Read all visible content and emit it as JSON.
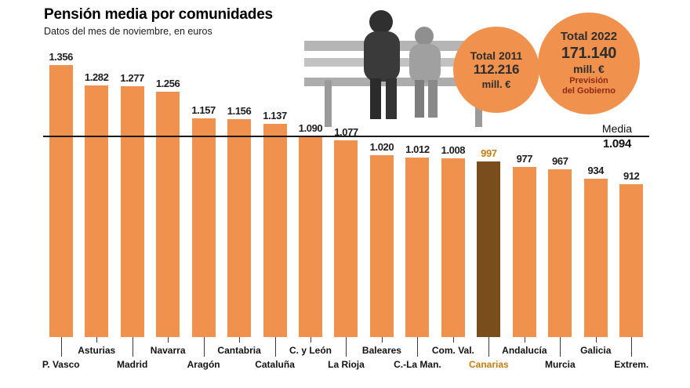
{
  "header": {
    "title": "Pensión media por comunidades",
    "subtitle": "Datos del mes de noviembre, en euros"
  },
  "badges": {
    "total_2011": {
      "label": "Total 2011",
      "value": "112.216",
      "unit": "mill. €"
    },
    "total_2022": {
      "label": "Total 2022",
      "value": "171.140",
      "unit": "mill. €",
      "note_line1": "Previsión",
      "note_line2": "del Gobierno"
    }
  },
  "average": {
    "label": "Media",
    "value": 1094,
    "value_label": "1.094"
  },
  "colors": {
    "bar": "#f0914e",
    "highlight_bar": "#7a4e1c",
    "highlight_text": "#c47d12",
    "badge": "#f0914e",
    "badge_note": "#8a2c15"
  },
  "chart_data": {
    "type": "bar",
    "title": "Pensión media por comunidades",
    "subtitle": "Datos del mes de noviembre, en euros",
    "unit": "euros",
    "categories": [
      "P. Vasco",
      "Asturias",
      "Madrid",
      "Navarra",
      "Aragón",
      "Cantabria",
      "Cataluña",
      "C. y León",
      "La Rioja",
      "Baleares",
      "C.-La Man.",
      "Com. Val.",
      "Canarias",
      "Andalucía",
      "Murcia",
      "Galicia",
      "Extrem."
    ],
    "values": [
      1356,
      1282,
      1277,
      1256,
      1157,
      1156,
      1137,
      1090,
      1077,
      1020,
      1012,
      1008,
      997,
      977,
      967,
      934,
      912
    ],
    "value_labels": [
      "1.356",
      "1.282",
      "1.277",
      "1.256",
      "1.157",
      "1.156",
      "1.137",
      "1.090",
      "1.077",
      "1.020",
      "1.012",
      "1.008",
      "997",
      "977",
      "967",
      "934",
      "912"
    ],
    "highlight_category": "Canarias",
    "average_line": {
      "label": "Media",
      "value": 1094
    },
    "ylim": [
      0,
      1400
    ],
    "grid": false,
    "legend": false
  }
}
